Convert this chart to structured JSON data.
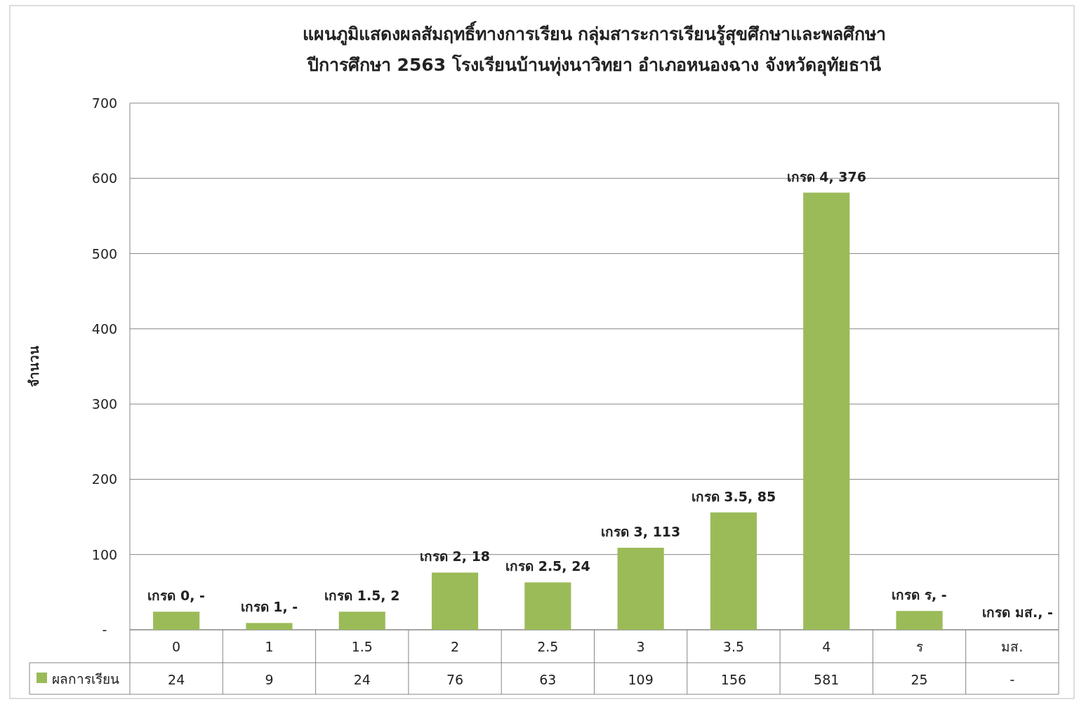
{
  "chart_data": {
    "type": "bar",
    "title": "แผนภูมิแสดงผลสัมฤทธิ์ทางการเรียน กลุ่มสาระการเรียนรู้สุขศึกษาและพลศึกษา\nปีการศึกษา 2563 โรงเรียนบ้านทุ่งนาวิทยา อำเภอหนองฉาง จังหวัดอุทัยธานี",
    "ylabel": "จำนวน",
    "categories": [
      "0",
      "1",
      "1.5",
      "2",
      "2.5",
      "3",
      "3.5",
      "4",
      "ร",
      "มส."
    ],
    "series": [
      {
        "name": "ผลการเรียน",
        "color": "#9bbb59",
        "values": [
          24,
          9,
          24,
          76,
          63,
          109,
          156,
          581,
          25,
          null
        ],
        "value_labels": [
          "24",
          "9",
          "24",
          "76",
          "63",
          "109",
          "156",
          "581",
          "25",
          "-"
        ]
      }
    ],
    "annotations": [
      {
        "text": "เกรด 0,  -",
        "x": "0",
        "y": 24
      },
      {
        "text": "เกรด 1,  -",
        "x": "1",
        "y": 9
      },
      {
        "text": "เกรด 1.5,  2",
        "x": "1.5",
        "y": 24
      },
      {
        "text": "เกรด 2,  18",
        "x": "2",
        "y": 76
      },
      {
        "text": "เกรด 2.5,  24",
        "x": "2.5",
        "y": 63
      },
      {
        "text": "เกรด 3,  113",
        "x": "3",
        "y": 109
      },
      {
        "text": "เกรด 3.5,  85",
        "x": "3.5",
        "y": 156
      },
      {
        "text": "เกรด 4,  376",
        "x": "4",
        "y": 581
      },
      {
        "text": "เกรด ร,  -",
        "x": "ร",
        "y": 25
      },
      "เกรด มส.,  -"
    ],
    "ylim": [
      0,
      700
    ],
    "yticks": [
      {
        "value": 0,
        "label": "-"
      },
      100,
      200,
      300,
      400,
      500,
      600,
      700
    ],
    "grid": "y",
    "legend": "bottom"
  }
}
